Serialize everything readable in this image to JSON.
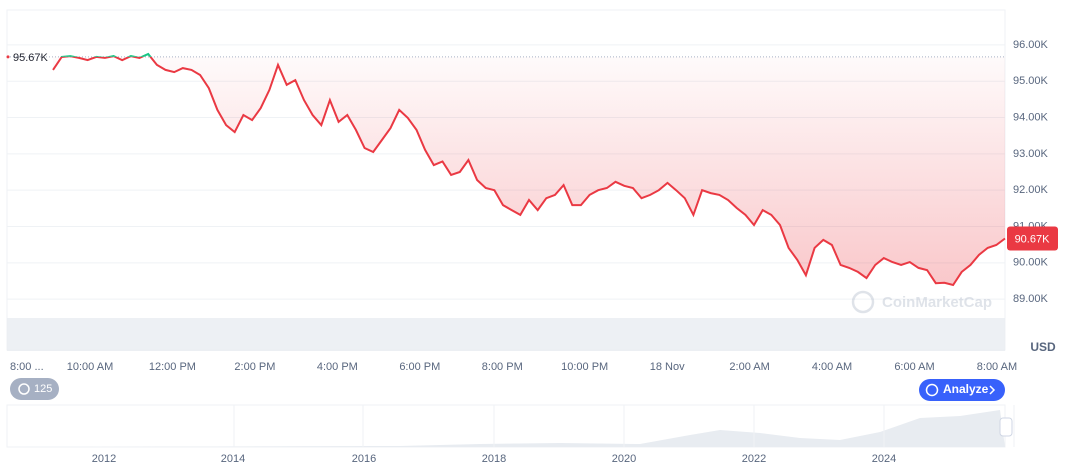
{
  "chart_data": {
    "type": "line",
    "series": [
      {
        "color_up": "#16c784",
        "color_down": "#ea3943",
        "values": [
          95310,
          95666,
          95690,
          95640,
          95580,
          95670,
          95640,
          95690,
          95580,
          95690,
          95640,
          95750,
          95450,
          95310,
          95250,
          95360,
          95310,
          95170,
          94810,
          94210,
          93790,
          93600,
          94070,
          93930,
          94260,
          94760,
          95450,
          94900,
          95030,
          94480,
          94070,
          93790,
          94480,
          93880,
          94070,
          93660,
          93160,
          93050,
          93380,
          93710,
          94210,
          93990,
          93660,
          93110,
          92690,
          92790,
          92420,
          92500,
          92830,
          92280,
          92060,
          92000,
          91590,
          91450,
          91320,
          91730,
          91450,
          91780,
          91870,
          92140,
          91590,
          91590,
          91870,
          92000,
          92060,
          92230,
          92120,
          92060,
          91780,
          91870,
          92000,
          92200,
          92000,
          91780,
          91320,
          92000,
          91920,
          91870,
          91730,
          91510,
          91320,
          91040,
          91450,
          91320,
          91040,
          90410,
          90080,
          89660,
          90410,
          90630,
          90490,
          89940,
          89860,
          89750,
          89580,
          89940,
          90130,
          90020,
          89940,
          90020,
          89860,
          89800,
          89440,
          89450,
          89390,
          89750,
          89940,
          90220,
          90410,
          90490,
          90670
        ]
      }
    ],
    "baseline": {
      "value": 95670,
      "label": "95.67K"
    },
    "last_label": "90.67K",
    "x_tick_labels": [
      "8:00 ...",
      "10:00 AM",
      "12:00 PM",
      "2:00 PM",
      "4:00 PM",
      "6:00 PM",
      "8:00 PM",
      "10:00 PM",
      "18 Nov",
      "2:00 AM",
      "4:00 AM",
      "6:00 AM",
      "8:00 AM"
    ],
    "ylim": [
      87600,
      96960
    ],
    "yticks": [
      {
        "value": 89000,
        "label": "89.00K"
      },
      {
        "value": 90000,
        "label": "90.00K"
      },
      {
        "value": 91000,
        "label": "91.00K"
      },
      {
        "value": 92000,
        "label": "92.00K"
      },
      {
        "value": 93000,
        "label": "93.00K"
      },
      {
        "value": 94000,
        "label": "94.00K"
      },
      {
        "value": 95000,
        "label": "95.00K"
      },
      {
        "value": 96000,
        "label": "96.00K"
      }
    ],
    "grid": true,
    "unit": "USD",
    "watermark": "CoinMarketCap",
    "history_button": "125",
    "analyze_button": "Analyze",
    "navigator_labels": [
      "2012",
      "2014",
      "2016",
      "2018",
      "2020",
      "2022",
      "2024"
    ]
  }
}
